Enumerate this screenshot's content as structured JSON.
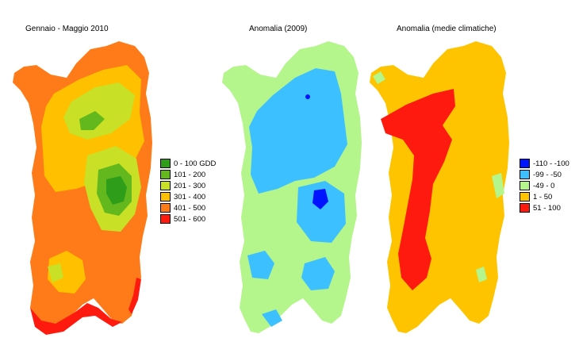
{
  "panels": [
    {
      "title": "Gennaio - Maggio 2010",
      "legend": [
        {
          "label": "0 - 100 GDD",
          "color": "#2e9e1a"
        },
        {
          "label": "101 - 200",
          "color": "#62b81c"
        },
        {
          "label": "201 - 300",
          "color": "#c8e025"
        },
        {
          "label": "301 - 400",
          "color": "#ffc000"
        },
        {
          "label": "401 - 500",
          "color": "#ff7a18"
        },
        {
          "label": "501 - 600",
          "color": "#ff1a10"
        }
      ]
    },
    {
      "title": "Anomalia (2009)",
      "legend": []
    },
    {
      "title": "Anomalia (medie climatiche)",
      "legend": [
        {
          "label": "-110 - -100",
          "color": "#0014ff"
        },
        {
          "label": "-99 - -50",
          "color": "#3cc0ff"
        },
        {
          "label": "-49 - 0",
          "color": "#b4f58c"
        },
        {
          "label": "1 - 50",
          "color": "#ffc400"
        },
        {
          "label": "51 - 100",
          "color": "#ff1a10"
        }
      ]
    }
  ]
}
